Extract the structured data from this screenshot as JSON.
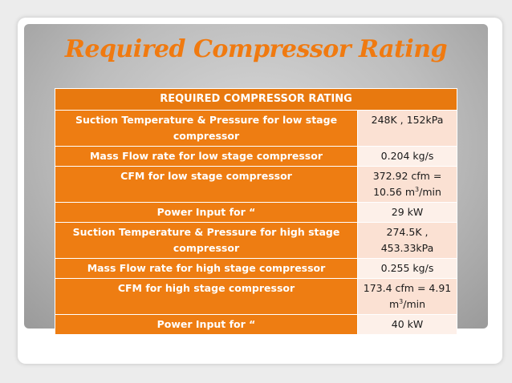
{
  "slide": {
    "title": "Required Compressor Rating"
  },
  "table": {
    "header": "REQUIRED COMPRESSOR RATING",
    "rows": [
      {
        "label": "Suction Temperature & Pressure for low stage compressor",
        "value": "248K , 152kPa"
      },
      {
        "label": "Mass Flow rate for low stage compressor",
        "value": "0.204 kg/s"
      },
      {
        "label": "CFM for low stage compressor",
        "value_pre": "372.92 cfm = 10.56 m",
        "value_sup": "3",
        "value_post": "/min"
      },
      {
        "label": "Power Input for “",
        "value": "29 kW"
      },
      {
        "label": "Suction Temperature & Pressure for high stage compressor",
        "value": "274.5K , 453.33kPa"
      },
      {
        "label": "Mass Flow rate for high stage compressor",
        "value": "0.255 kg/s"
      },
      {
        "label": "CFM for high stage compressor",
        "value_pre": "173.4 cfm = 4.91 m",
        "value_sup": "3",
        "value_post": "/min"
      },
      {
        "label": "Power Input for “",
        "value": "40 kW"
      }
    ]
  },
  "colors": {
    "accent_orange": "#ee7d12",
    "value_cell": "#fbe1d3",
    "panel_gray": "#bdbdbd"
  }
}
